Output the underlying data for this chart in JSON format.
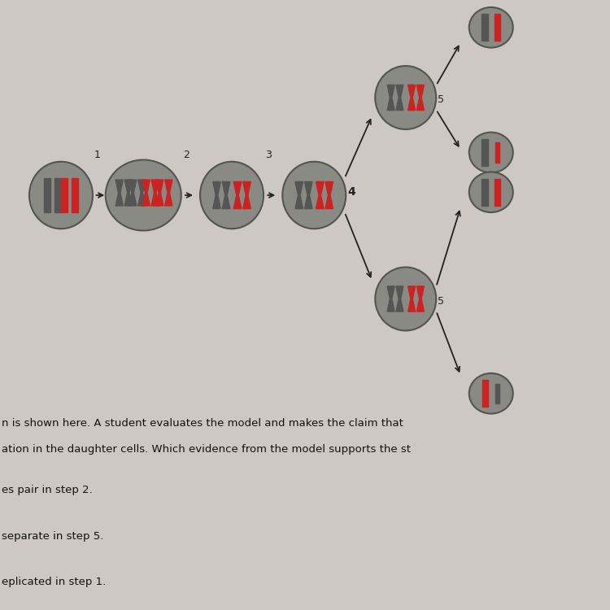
{
  "bg_color": "#cdc8c4",
  "cell_color": "#8a8a84",
  "cell_edge_color": "#555550",
  "chrom_dark": "#555555",
  "chrom_red": "#CC2222",
  "arrow_color": "#222222",
  "step_label_color": "#222222",
  "text_color": "#111111",
  "line1": "n is shown here. A student evaluates the model and makes the claim that",
  "line2": "ation in the daughter cells. Which evidence from the model supports the st",
  "line3": "es pair in step 2.",
  "line4": "separate in step 5.",
  "line5": "eplicated in step 1."
}
